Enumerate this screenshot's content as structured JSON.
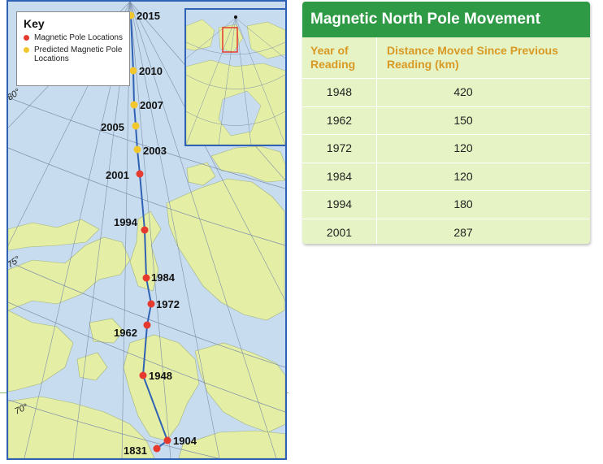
{
  "map": {
    "key": {
      "title": "Key",
      "items": [
        {
          "label": "Magnetic Pole Locations",
          "color": "#e53a2d"
        },
        {
          "label": "Predicted Magnetic Pole Locations",
          "color": "#f2c72e"
        }
      ]
    },
    "latitude_labels": [
      "80°",
      "75°",
      "70°"
    ],
    "pole_years": [
      {
        "year": "2015",
        "type": "predicted"
      },
      {
        "year": "2010",
        "type": "predicted"
      },
      {
        "year": "2007",
        "type": "predicted"
      },
      {
        "year": "2005",
        "type": "predicted"
      },
      {
        "year": "2003",
        "type": "predicted"
      },
      {
        "year": "2001",
        "type": "observed"
      },
      {
        "year": "1994",
        "type": "observed"
      },
      {
        "year": "1984",
        "type": "observed"
      },
      {
        "year": "1972",
        "type": "observed"
      },
      {
        "year": "1962",
        "type": "observed"
      },
      {
        "year": "1948",
        "type": "observed"
      },
      {
        "year": "1904",
        "type": "observed"
      },
      {
        "year": "1831",
        "type": "observed"
      }
    ],
    "colors": {
      "water": "#c8dcef",
      "land": "#e5eea5",
      "path": "#2f62b5",
      "observed": "#e53a2d",
      "predicted": "#f2c72e"
    }
  },
  "table": {
    "title": "Magnetic North Pole Movement",
    "headers": [
      "Year of Reading",
      "Distance Moved Since Previous Reading (km)"
    ],
    "rows": [
      [
        "1948",
        "420"
      ],
      [
        "1962",
        "150"
      ],
      [
        "1972",
        "120"
      ],
      [
        "1984",
        "120"
      ],
      [
        "1994",
        "180"
      ],
      [
        "2001",
        "287"
      ]
    ]
  }
}
